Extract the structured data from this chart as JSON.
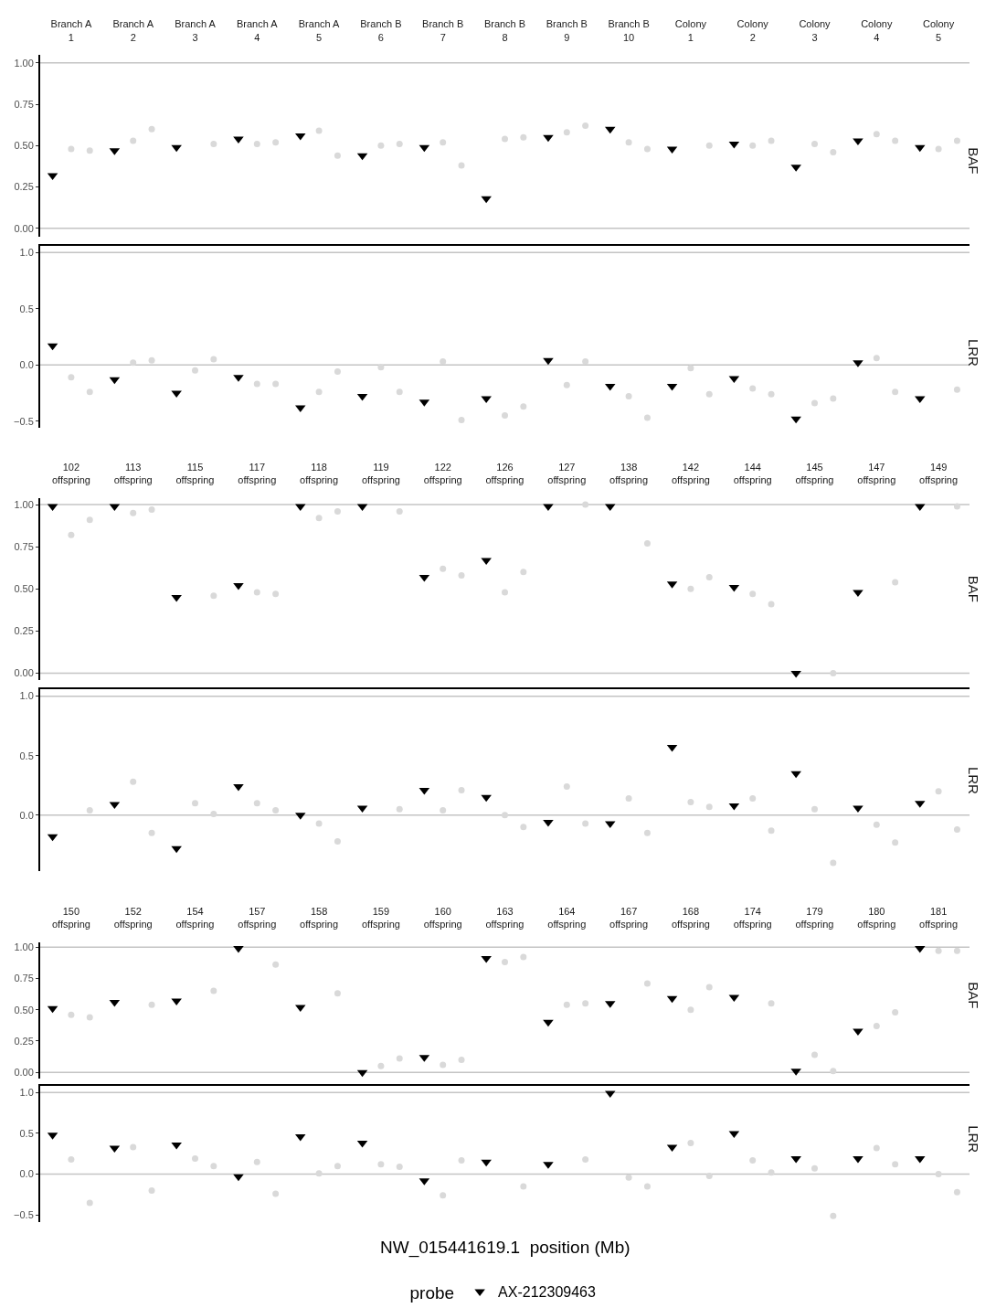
{
  "chart_data": [
    {
      "type": "scatter",
      "categories": [
        "Branch A\n1",
        "Branch A\n2",
        "Branch A\n3",
        "Branch A\n4",
        "Branch A\n5",
        "Branch B\n6",
        "Branch B\n7",
        "Branch B\n8",
        "Branch B\n9",
        "Branch B\n10",
        "Colony\n1",
        "Colony\n2",
        "Colony\n3",
        "Colony\n4",
        "Colony\n5"
      ],
      "ylabel": "BAF",
      "ylim": [
        -0.05,
        1.05
      ],
      "yticks": [
        {
          "value": 0,
          "label": "0.00"
        },
        {
          "value": 0.25,
          "label": "0.25"
        },
        {
          "value": 0.5,
          "label": "0.50"
        },
        {
          "value": 0.75,
          "label": "0.75"
        },
        {
          "value": 1,
          "label": "1.00"
        }
      ],
      "ref_lines": [
        {
          "axis": "y",
          "value": 0
        },
        {
          "axis": "y",
          "value": 1
        }
      ],
      "series": [
        {
          "color": "#000000",
          "marker": "triangle",
          "values": [
            0.32,
            0.47,
            0.49,
            0.54,
            0.56,
            0.44,
            0.49,
            0.18,
            0.55,
            0.6,
            0.48,
            0.51,
            0.37,
            0.53,
            0.49
          ]
        },
        {
          "color": "#d9d9d9",
          "marker": "circle",
          "values": [
            0.48,
            0.53,
            null,
            0.51,
            0.59,
            0.5,
            0.52,
            0.54,
            0.58,
            0.52,
            null,
            0.5,
            0.51,
            0.57,
            0.48
          ]
        },
        {
          "color": "#d9d9d9",
          "marker": "circle",
          "values": [
            0.47,
            0.6,
            0.51,
            0.52,
            0.44,
            0.51,
            0.38,
            0.55,
            0.62,
            0.48,
            0.5,
            0.53,
            0.46,
            0.53,
            0.53
          ]
        }
      ]
    },
    {
      "type": "scatter",
      "categories": [
        null,
        null,
        null,
        null,
        null,
        null,
        null,
        null,
        null,
        null,
        null,
        null,
        null,
        null,
        null
      ],
      "tick_labels": "y",
      "ylabel": "LRR",
      "ylim": [
        -0.56,
        1.06
      ],
      "yticks": [
        {
          "value": -0.5,
          "label": "−0.5"
        },
        {
          "value": 0,
          "label": "0.0"
        },
        {
          "value": 0.5,
          "label": "0.5"
        },
        {
          "value": 1,
          "label": "1.0"
        }
      ],
      "ref_lines": [
        {
          "axis": "y",
          "value": 0
        },
        {
          "axis": "y",
          "value": 1
        }
      ],
      "series": [
        {
          "color": "#000000",
          "marker": "triangle",
          "values": [
            0.17,
            -0.13,
            -0.25,
            -0.11,
            -0.38,
            -0.28,
            -0.33,
            -0.3,
            0.04,
            -0.19,
            -0.19,
            -0.12,
            -0.48,
            0.02,
            -0.3
          ]
        },
        {
          "color": "#d9d9d9",
          "marker": "circle",
          "values": [
            -0.11,
            0.02,
            -0.05,
            -0.17,
            -0.24,
            -0.02,
            0.03,
            -0.45,
            -0.18,
            -0.28,
            -0.03,
            -0.21,
            -0.34,
            0.06,
            null
          ]
        },
        {
          "color": "#d9d9d9",
          "marker": "circle",
          "values": [
            -0.24,
            0.04,
            0.05,
            -0.17,
            -0.06,
            -0.24,
            -0.49,
            -0.37,
            0.03,
            -0.47,
            -0.26,
            -0.26,
            -0.3,
            -0.24,
            -0.22
          ]
        }
      ]
    },
    {
      "type": "scatter",
      "categories": [
        "102\noffspring",
        "113\noffspring",
        "115\noffspring",
        "117\noffspring",
        "118\noffspring",
        "119\noffspring",
        "122\noffspring",
        "126\noffspring",
        "127\noffspring",
        "138\noffspring",
        "142\noffspring",
        "144\noffspring",
        "145\noffspring",
        "147\noffspring",
        "149\noffspring"
      ],
      "ylabel": "BAF",
      "ylim": [
        -0.04,
        1.04
      ],
      "yticks": [
        {
          "value": 0,
          "label": "0.00"
        },
        {
          "value": 0.25,
          "label": "0.25"
        },
        {
          "value": 0.5,
          "label": "0.50"
        },
        {
          "value": 0.75,
          "label": "0.75"
        },
        {
          "value": 1,
          "label": "1.00"
        }
      ],
      "ref_lines": [
        {
          "axis": "y",
          "value": 0
        },
        {
          "axis": "y",
          "value": 1
        }
      ],
      "series": [
        {
          "color": "#000000",
          "marker": "triangle",
          "values": [
            0.99,
            0.99,
            0.45,
            0.52,
            0.99,
            0.99,
            0.57,
            0.67,
            0.99,
            0.99,
            0.53,
            0.51,
            0.0,
            0.48,
            0.99
          ]
        },
        {
          "color": "#d9d9d9",
          "marker": "circle",
          "values": [
            0.82,
            0.95,
            null,
            0.48,
            0.92,
            null,
            0.62,
            0.48,
            null,
            null,
            0.5,
            0.47,
            null,
            null,
            null
          ]
        },
        {
          "color": "#d9d9d9",
          "marker": "circle",
          "values": [
            0.91,
            0.97,
            0.46,
            0.47,
            0.96,
            0.96,
            0.58,
            0.6,
            1.0,
            0.77,
            0.57,
            0.41,
            0.0,
            0.54,
            0.99
          ]
        }
      ]
    },
    {
      "type": "scatter",
      "categories": [
        null,
        null,
        null,
        null,
        null,
        null,
        null,
        null,
        null,
        null,
        null,
        null,
        null,
        null,
        null
      ],
      "tick_labels": "y",
      "ylabel": "LRR",
      "ylim": [
        -0.47,
        1.06
      ],
      "yticks": [
        {
          "value": 0,
          "label": "0.0"
        },
        {
          "value": 0.5,
          "label": "0.5"
        },
        {
          "value": 1,
          "label": "1.0"
        }
      ],
      "ref_lines": [
        {
          "axis": "y",
          "value": 0
        },
        {
          "axis": "y",
          "value": 1
        }
      ],
      "series": [
        {
          "color": "#000000",
          "marker": "triangle",
          "values": [
            -0.18,
            0.09,
            -0.28,
            0.24,
            0.0,
            0.06,
            0.21,
            0.15,
            -0.06,
            -0.07,
            0.57,
            0.08,
            0.35,
            0.06,
            0.1
          ]
        },
        {
          "color": "#d9d9d9",
          "marker": "circle",
          "values": [
            null,
            0.28,
            0.1,
            0.1,
            -0.07,
            null,
            0.04,
            0.0,
            0.24,
            0.14,
            0.11,
            0.14,
            0.05,
            -0.08,
            0.2
          ]
        },
        {
          "color": "#d9d9d9",
          "marker": "circle",
          "values": [
            0.04,
            -0.15,
            0.01,
            0.04,
            -0.22,
            0.05,
            0.21,
            -0.1,
            -0.07,
            -0.15,
            0.07,
            -0.13,
            -0.4,
            -0.23,
            -0.12
          ]
        }
      ]
    },
    {
      "type": "scatter",
      "categories": [
        "150\noffspring",
        "152\noffspring",
        "154\noffspring",
        "157\noffspring",
        "158\noffspring",
        "159\noffspring",
        "160\noffspring",
        "163\noffspring",
        "164\noffspring",
        "167\noffspring",
        "168\noffspring",
        "174\noffspring",
        "179\noffspring",
        "180\noffspring",
        "181\noffspring"
      ],
      "ylabel": "BAF",
      "ylim": [
        -0.05,
        1.04
      ],
      "yticks": [
        {
          "value": 0,
          "label": "0.00"
        },
        {
          "value": 0.25,
          "label": "0.25"
        },
        {
          "value": 0.5,
          "label": "0.50"
        },
        {
          "value": 0.75,
          "label": "0.75"
        },
        {
          "value": 1,
          "label": "1.00"
        }
      ],
      "ref_lines": [
        {
          "axis": "y",
          "value": 0
        },
        {
          "axis": "y",
          "value": 1
        }
      ],
      "series": [
        {
          "color": "#000000",
          "marker": "triangle",
          "values": [
            0.51,
            0.56,
            0.57,
            0.99,
            0.52,
            0.0,
            0.12,
            0.91,
            0.4,
            0.55,
            0.59,
            0.6,
            0.01,
            0.33,
            0.99
          ]
        },
        {
          "color": "#d9d9d9",
          "marker": "circle",
          "values": [
            0.46,
            null,
            null,
            null,
            null,
            0.05,
            0.06,
            0.88,
            0.54,
            null,
            0.5,
            null,
            0.14,
            0.37,
            0.97
          ]
        },
        {
          "color": "#d9d9d9",
          "marker": "circle",
          "values": [
            0.44,
            0.54,
            0.65,
            0.86,
            0.63,
            0.11,
            0.1,
            0.92,
            0.55,
            0.71,
            0.68,
            0.55,
            0.01,
            0.48,
            0.97
          ]
        }
      ]
    },
    {
      "type": "scatter",
      "categories": [
        null,
        null,
        null,
        null,
        null,
        null,
        null,
        null,
        null,
        null,
        null,
        null,
        null,
        null,
        null
      ],
      "tick_labels": "y",
      "ylabel": "LRR",
      "xlabel": "NW_015441619.1  position (Mb)",
      "legend": "bottom",
      "legend_title": "probe",
      "ylim": [
        -0.59,
        1.08
      ],
      "yticks": [
        {
          "value": -0.5,
          "label": "−0.5"
        },
        {
          "value": 0,
          "label": "0.0"
        },
        {
          "value": 0.5,
          "label": "0.5"
        },
        {
          "value": 1,
          "label": "1.0"
        }
      ],
      "ref_lines": [
        {
          "axis": "y",
          "value": 0
        },
        {
          "axis": "y",
          "value": 1
        }
      ],
      "series": [
        {
          "name": "AX-212309463",
          "color": "#000000",
          "marker": "triangle",
          "values": [
            0.48,
            0.32,
            0.36,
            -0.03,
            0.46,
            0.38,
            -0.08,
            0.15,
            0.12,
            0.99,
            0.33,
            0.5,
            0.19,
            0.19,
            0.19
          ]
        },
        {
          "color": "#d9d9d9",
          "marker": "circle",
          "values": [
            0.18,
            0.33,
            0.19,
            0.15,
            0.01,
            0.12,
            -0.26,
            null,
            null,
            -0.04,
            0.38,
            0.17,
            0.07,
            0.32,
            0.0
          ]
        },
        {
          "color": "#d9d9d9",
          "marker": "circle",
          "values": [
            -0.35,
            -0.2,
            0.1,
            -0.24,
            0.1,
            0.09,
            0.17,
            -0.15,
            0.18,
            -0.15,
            -0.02,
            0.02,
            -0.51,
            0.12,
            -0.22
          ]
        }
      ]
    }
  ]
}
